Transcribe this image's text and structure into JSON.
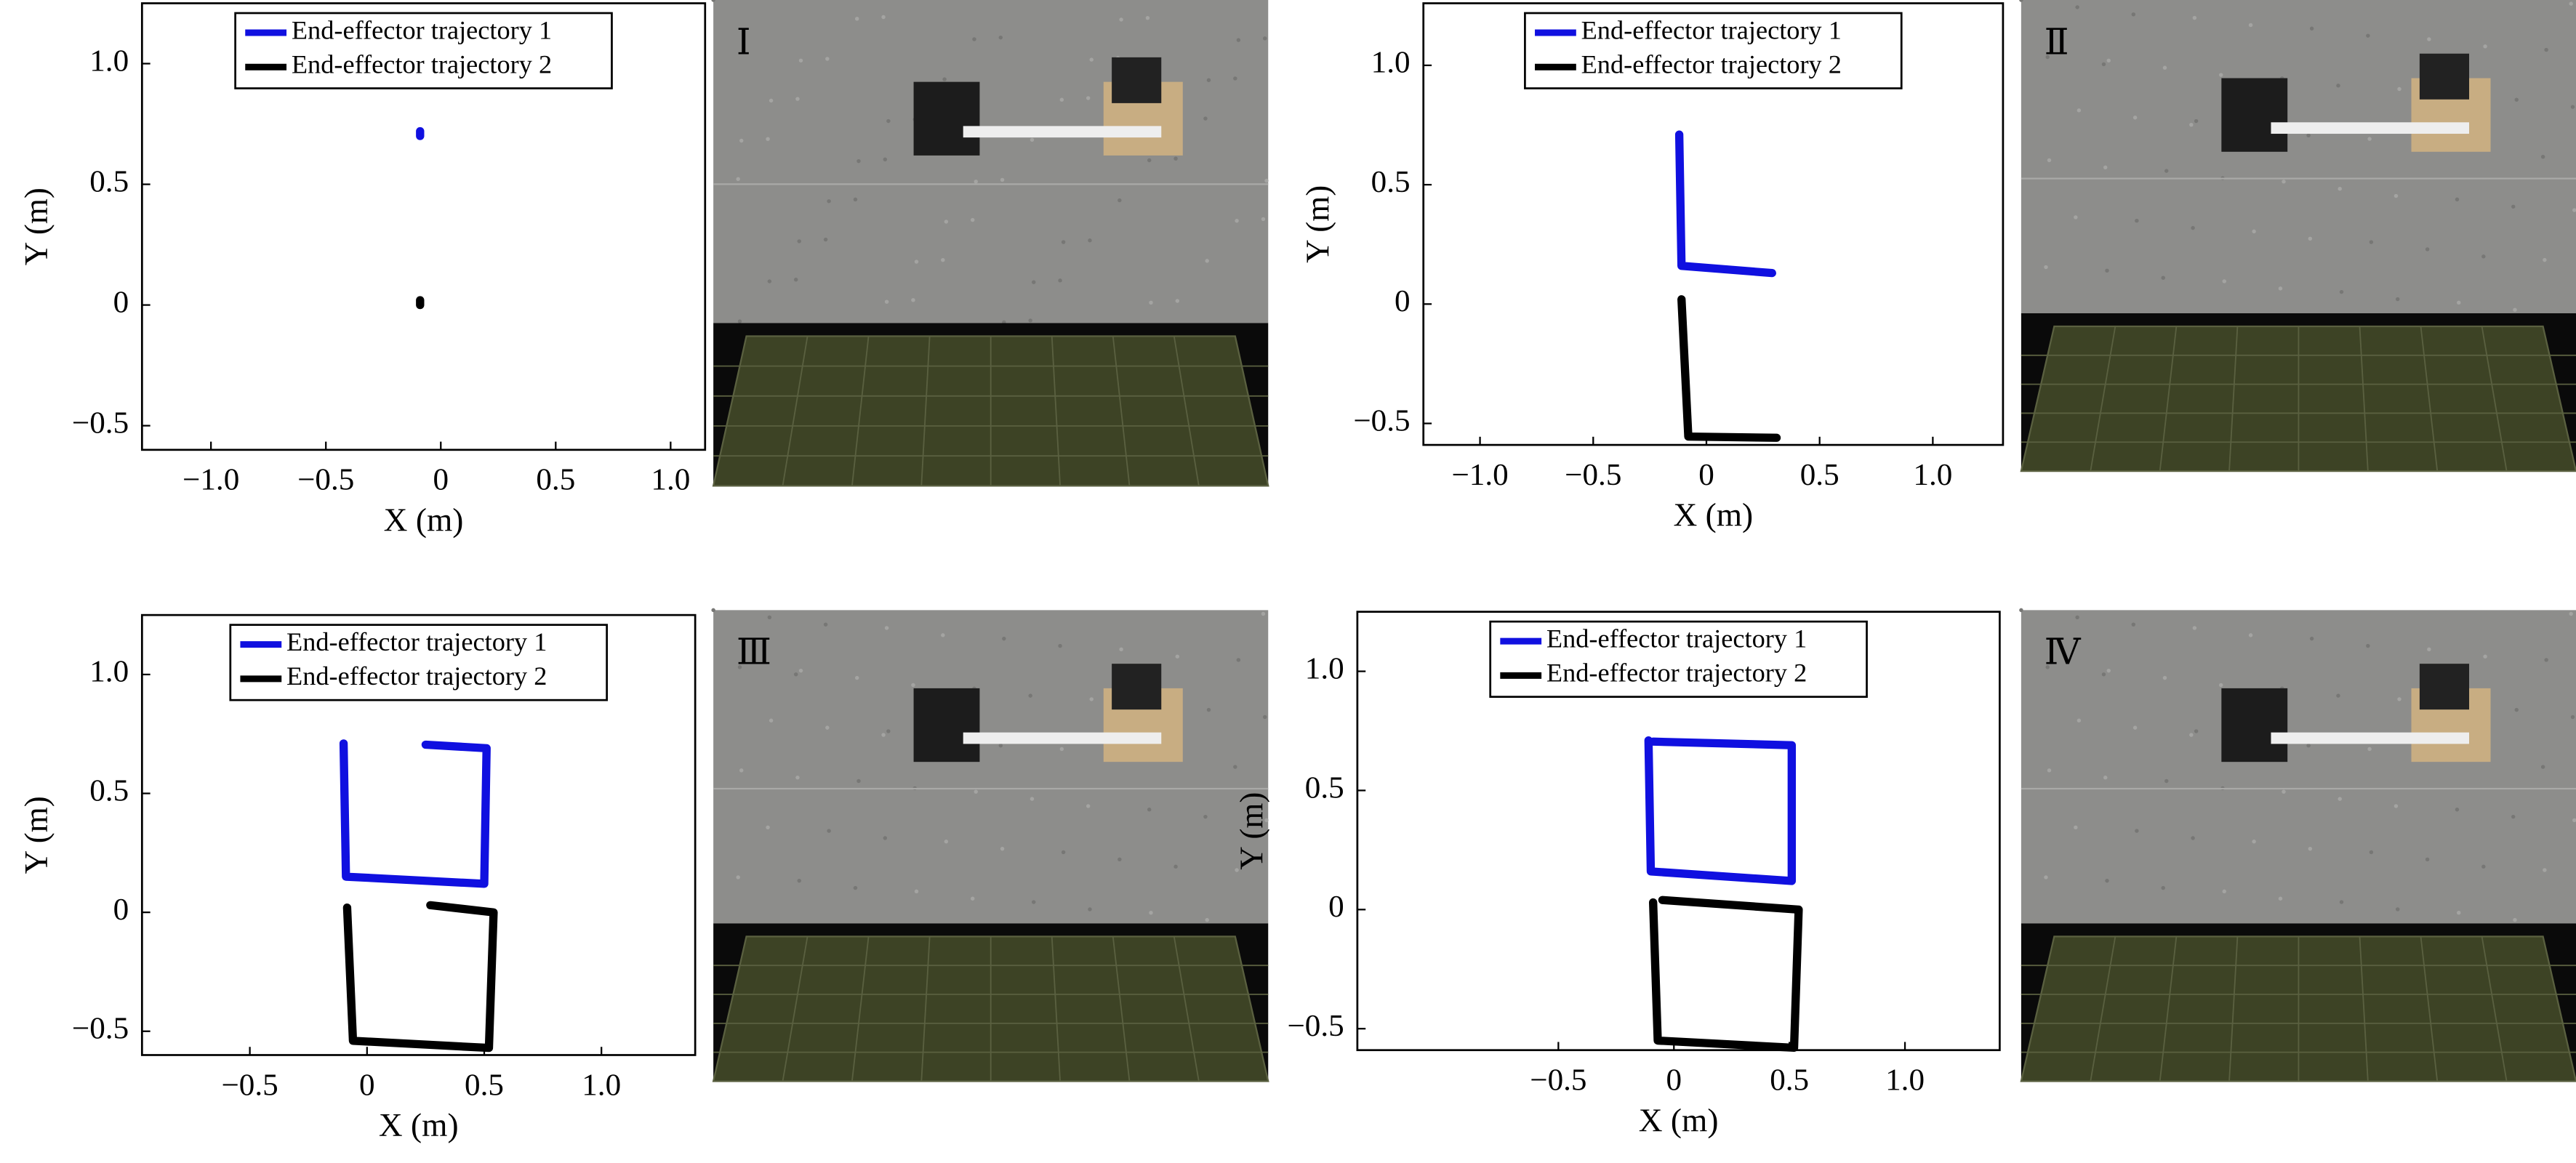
{
  "chart_data": [
    {
      "type": "line",
      "annotation": "Ⅰ",
      "xlabel": "X (m)",
      "ylabel": "Y (m)",
      "xlim": [
        -1.3,
        1.15
      ],
      "ylim": [
        -0.6,
        1.25
      ],
      "xticks": [
        {
          "value": -1,
          "label": "−1.0"
        },
        {
          "value": -0.5,
          "label": "−0.5"
        },
        0,
        0.5,
        {
          "value": 1,
          "label": "1.0"
        }
      ],
      "yticks": [
        {
          "value": -0.5,
          "label": "−0.5"
        },
        0,
        0.5,
        {
          "value": 1,
          "label": "1.0"
        }
      ],
      "legend": "upper center",
      "series": [
        {
          "name": "End-effector trajectory 1",
          "color": "#1010e0",
          "x": [
            -0.09,
            -0.09
          ],
          "values": [
            0.7,
            0.72
          ]
        },
        {
          "name": "End-effector trajectory 2",
          "color": "#000000",
          "x": [
            -0.09,
            -0.09
          ],
          "values": [
            0.0,
            0.02
          ]
        }
      ]
    },
    {
      "type": "line",
      "annotation": "Ⅱ",
      "xlabel": "X (m)",
      "ylabel": "Y (m)",
      "xlim": [
        -1.25,
        1.31
      ],
      "ylim": [
        -0.59,
        1.26
      ],
      "xticks": [
        {
          "value": -1,
          "label": "−1.0"
        },
        {
          "value": -0.5,
          "label": "−0.5"
        },
        0,
        0.5,
        {
          "value": 1,
          "label": "1.0"
        }
      ],
      "yticks": [
        {
          "value": -0.5,
          "label": "−0.5"
        },
        0,
        0.5,
        {
          "value": 1,
          "label": "1.0"
        }
      ],
      "legend": "upper center",
      "series": [
        {
          "name": "End-effector trajectory 1",
          "color": "#1010e0",
          "x": [
            -0.12,
            -0.11,
            0.29
          ],
          "values": [
            0.71,
            0.16,
            0.13
          ]
        },
        {
          "name": "End-effector trajectory 2",
          "color": "#000000",
          "x": [
            -0.11,
            -0.08,
            0.31
          ],
          "values": [
            0.02,
            -0.555,
            -0.56
          ]
        }
      ]
    },
    {
      "type": "line",
      "annotation": "Ⅲ",
      "xlabel": "X (m)",
      "ylabel": "Y (m)",
      "xlim": [
        -0.96,
        1.4
      ],
      "ylim": [
        -0.6,
        1.25
      ],
      "xticks": [
        {
          "value": -0.5,
          "label": "−0.5"
        },
        0,
        0.5,
        {
          "value": 1,
          "label": "1.0"
        }
      ],
      "yticks": [
        {
          "value": -0.5,
          "label": "−0.5"
        },
        0,
        0.5,
        {
          "value": 1,
          "label": "1.0"
        }
      ],
      "legend": "upper center",
      "series": [
        {
          "name": "End-effector trajectory 1",
          "color": "#1010e0",
          "x": [
            -0.1,
            -0.09,
            0.5,
            0.51,
            0.25
          ],
          "values": [
            0.71,
            0.15,
            0.12,
            0.69,
            0.705
          ]
        },
        {
          "name": "End-effector trajectory 2",
          "color": "#000000",
          "x": [
            -0.085,
            -0.06,
            0.52,
            0.54,
            0.27
          ],
          "values": [
            0.02,
            -0.54,
            -0.57,
            0.0,
            0.03
          ]
        }
      ]
    },
    {
      "type": "line",
      "annotation": "Ⅳ",
      "xlabel": "X (m)",
      "ylabel": "Y (m)",
      "xlim": [
        -1.37,
        1.41
      ],
      "ylim": [
        -0.59,
        1.25
      ],
      "xticks": [
        {
          "value": -0.5,
          "label": "−0.5"
        },
        0,
        0.5,
        {
          "value": 1,
          "label": "1.0"
        }
      ],
      "yticks": [
        {
          "value": -0.5,
          "label": "−0.5"
        },
        0,
        0.5,
        {
          "value": 1,
          "label": "1.0"
        }
      ],
      "legend": "upper center",
      "series": [
        {
          "name": "End-effector trajectory 1",
          "color": "#1010e0",
          "x": [
            -0.11,
            -0.1,
            0.51,
            0.51,
            -0.09
          ],
          "values": [
            0.71,
            0.16,
            0.12,
            0.69,
            0.705
          ]
        },
        {
          "name": "End-effector trajectory 2",
          "color": "#000000",
          "x": [
            -0.09,
            -0.07,
            0.52,
            0.54,
            -0.05
          ],
          "values": [
            0.03,
            -0.55,
            -0.58,
            0.0,
            0.04
          ]
        }
      ]
    }
  ]
}
